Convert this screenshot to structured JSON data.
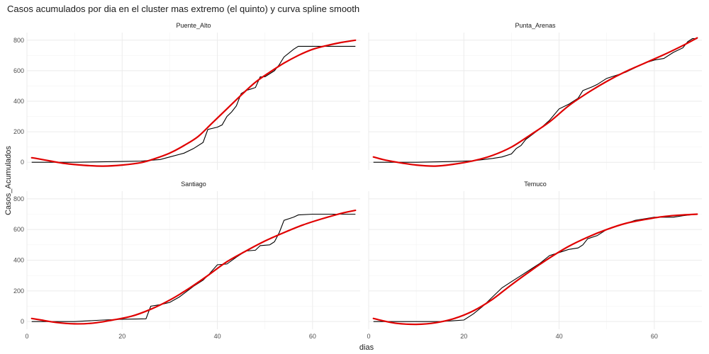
{
  "chart_data": {
    "type": "line",
    "title": "Casos acumulados por dia en el cluster mas extremo (el quinto) y curva spline smooth",
    "xlabel": "dias",
    "ylabel": "Casos_Acumulados",
    "xlim": [
      0,
      70
    ],
    "ylim": [
      -50,
      850
    ],
    "x_ticks": [
      0,
      20,
      40,
      60
    ],
    "y_ticks": [
      0,
      200,
      400,
      600,
      800
    ],
    "grid": true,
    "legend": "none",
    "colors": {
      "observed": "#000000",
      "smooth": "#e00000",
      "grid": "#ebebeb"
    },
    "panels": [
      {
        "name": "Puente_Alto",
        "observed": [
          [
            1,
            0
          ],
          [
            10,
            0
          ],
          [
            20,
            5
          ],
          [
            24,
            8
          ],
          [
            28,
            18
          ],
          [
            30,
            35
          ],
          [
            33,
            60
          ],
          [
            35,
            90
          ],
          [
            37,
            130
          ],
          [
            38,
            215
          ],
          [
            40,
            230
          ],
          [
            41,
            245
          ],
          [
            42,
            300
          ],
          [
            43,
            330
          ],
          [
            44,
            370
          ],
          [
            45,
            450
          ],
          [
            46,
            470
          ],
          [
            47,
            480
          ],
          [
            48,
            490
          ],
          [
            49,
            560
          ],
          [
            50,
            560
          ],
          [
            52,
            600
          ],
          [
            53,
            640
          ],
          [
            54,
            690
          ],
          [
            56,
            740
          ],
          [
            57,
            760
          ],
          [
            60,
            760
          ],
          [
            66,
            760
          ],
          [
            69,
            760
          ]
        ],
        "smooth": [
          [
            1,
            30
          ],
          [
            2,
            25
          ],
          [
            5,
            8
          ],
          [
            8,
            -8
          ],
          [
            12,
            -20
          ],
          [
            16,
            -25
          ],
          [
            20,
            -18
          ],
          [
            24,
            -2
          ],
          [
            27,
            25
          ],
          [
            30,
            60
          ],
          [
            33,
            110
          ],
          [
            36,
            170
          ],
          [
            39,
            260
          ],
          [
            42,
            350
          ],
          [
            45,
            440
          ],
          [
            48,
            525
          ],
          [
            51,
            590
          ],
          [
            54,
            650
          ],
          [
            57,
            700
          ],
          [
            60,
            740
          ],
          [
            63,
            765
          ],
          [
            66,
            785
          ],
          [
            69,
            800
          ]
        ]
      },
      {
        "name": "Punta_Arenas",
        "observed": [
          [
            1,
            0
          ],
          [
            10,
            0
          ],
          [
            18,
            5
          ],
          [
            22,
            10
          ],
          [
            26,
            25
          ],
          [
            28,
            35
          ],
          [
            30,
            55
          ],
          [
            31,
            90
          ],
          [
            32,
            110
          ],
          [
            33,
            150
          ],
          [
            36,
            220
          ],
          [
            38,
            275
          ],
          [
            40,
            350
          ],
          [
            42,
            380
          ],
          [
            44,
            420
          ],
          [
            45,
            470
          ],
          [
            47,
            495
          ],
          [
            48,
            510
          ],
          [
            50,
            550
          ],
          [
            52,
            570
          ],
          [
            54,
            590
          ],
          [
            58,
            650
          ],
          [
            60,
            670
          ],
          [
            62,
            680
          ],
          [
            64,
            720
          ],
          [
            66,
            750
          ],
          [
            67,
            790
          ],
          [
            68,
            810
          ],
          [
            69,
            810
          ]
        ],
        "smooth": [
          [
            1,
            35
          ],
          [
            3,
            18
          ],
          [
            6,
            0
          ],
          [
            10,
            -18
          ],
          [
            14,
            -25
          ],
          [
            18,
            -12
          ],
          [
            22,
            10
          ],
          [
            26,
            45
          ],
          [
            30,
            100
          ],
          [
            34,
            180
          ],
          [
            38,
            265
          ],
          [
            42,
            370
          ],
          [
            46,
            455
          ],
          [
            50,
            530
          ],
          [
            54,
            595
          ],
          [
            58,
            650
          ],
          [
            62,
            705
          ],
          [
            66,
            765
          ],
          [
            69,
            815
          ]
        ]
      },
      {
        "name": "Santiago",
        "observed": [
          [
            1,
            0
          ],
          [
            10,
            0
          ],
          [
            16,
            10
          ],
          [
            20,
            15
          ],
          [
            25,
            18
          ],
          [
            26,
            100
          ],
          [
            28,
            110
          ],
          [
            30,
            125
          ],
          [
            32,
            160
          ],
          [
            35,
            230
          ],
          [
            37,
            270
          ],
          [
            38,
            300
          ],
          [
            40,
            370
          ],
          [
            42,
            375
          ],
          [
            44,
            420
          ],
          [
            46,
            460
          ],
          [
            48,
            465
          ],
          [
            49,
            495
          ],
          [
            51,
            500
          ],
          [
            52,
            520
          ],
          [
            53,
            580
          ],
          [
            54,
            660
          ],
          [
            56,
            680
          ],
          [
            57,
            695
          ],
          [
            60,
            700
          ],
          [
            66,
            700
          ],
          [
            69,
            700
          ]
        ],
        "smooth": [
          [
            1,
            20
          ],
          [
            3,
            10
          ],
          [
            6,
            -5
          ],
          [
            10,
            -15
          ],
          [
            14,
            -10
          ],
          [
            18,
            10
          ],
          [
            22,
            35
          ],
          [
            26,
            80
          ],
          [
            30,
            140
          ],
          [
            34,
            215
          ],
          [
            38,
            300
          ],
          [
            42,
            390
          ],
          [
            46,
            460
          ],
          [
            50,
            525
          ],
          [
            54,
            580
          ],
          [
            58,
            630
          ],
          [
            62,
            670
          ],
          [
            66,
            705
          ],
          [
            69,
            725
          ]
        ]
      },
      {
        "name": "Temuco",
        "observed": [
          [
            1,
            0
          ],
          [
            15,
            0
          ],
          [
            20,
            10
          ],
          [
            22,
            50
          ],
          [
            24,
            100
          ],
          [
            26,
            160
          ],
          [
            28,
            220
          ],
          [
            30,
            260
          ],
          [
            32,
            300
          ],
          [
            34,
            340
          ],
          [
            36,
            380
          ],
          [
            38,
            430
          ],
          [
            40,
            450
          ],
          [
            42,
            470
          ],
          [
            44,
            480
          ],
          [
            45,
            500
          ],
          [
            46,
            540
          ],
          [
            48,
            560
          ],
          [
            50,
            600
          ],
          [
            52,
            620
          ],
          [
            54,
            640
          ],
          [
            56,
            660
          ],
          [
            60,
            680
          ],
          [
            64,
            680
          ],
          [
            66,
            690
          ],
          [
            69,
            700
          ]
        ],
        "smooth": [
          [
            1,
            20
          ],
          [
            3,
            5
          ],
          [
            6,
            -12
          ],
          [
            10,
            -18
          ],
          [
            14,
            -8
          ],
          [
            18,
            20
          ],
          [
            22,
            70
          ],
          [
            26,
            145
          ],
          [
            30,
            240
          ],
          [
            34,
            330
          ],
          [
            38,
            415
          ],
          [
            42,
            490
          ],
          [
            46,
            550
          ],
          [
            50,
            600
          ],
          [
            54,
            640
          ],
          [
            58,
            665
          ],
          [
            62,
            685
          ],
          [
            66,
            695
          ],
          [
            69,
            700
          ]
        ]
      }
    ]
  }
}
